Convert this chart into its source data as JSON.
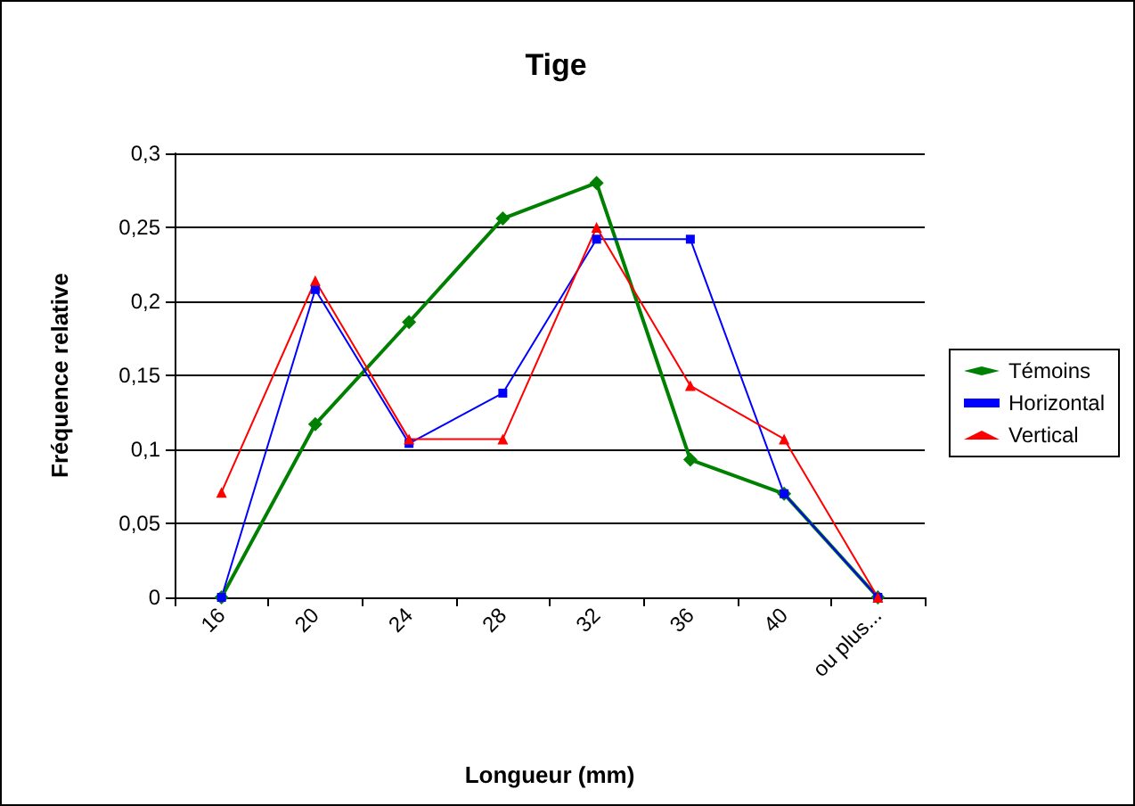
{
  "chart_data": {
    "type": "line",
    "title": "Tige",
    "xlabel": "Longueur (mm)",
    "ylabel": "Fréquence relative",
    "categories": [
      "16",
      "20",
      "24",
      "28",
      "32",
      "36",
      "40",
      "ou plus..."
    ],
    "series": [
      {
        "name": "Témoins",
        "color": "#008000",
        "marker": "diamond",
        "values": [
          0,
          0.117,
          0.186,
          0.256,
          0.28,
          0.093,
          0.07,
          0
        ]
      },
      {
        "name": "Horizontal",
        "color": "#0000ff",
        "marker": "square",
        "values": [
          0,
          0.208,
          0.104,
          0.138,
          0.242,
          0.242,
          0.07,
          0
        ]
      },
      {
        "name": "Vertical",
        "color": "#ff0000",
        "marker": "triangle",
        "values": [
          0.071,
          0.214,
          0.107,
          0.107,
          0.25,
          0.143,
          0.107,
          0
        ]
      }
    ],
    "ylim": [
      0,
      0.3
    ],
    "yticks": [
      0,
      {
        "value": 0.05,
        "label": "0,05"
      },
      {
        "value": 0.1,
        "label": "0,1"
      },
      {
        "value": 0.15,
        "label": "0,15"
      },
      {
        "value": 0.2,
        "label": "0,2"
      },
      {
        "value": 0.25,
        "label": "0,25"
      },
      {
        "value": 0.3,
        "label": "0,3"
      }
    ],
    "grid": "y",
    "legend": "right"
  }
}
